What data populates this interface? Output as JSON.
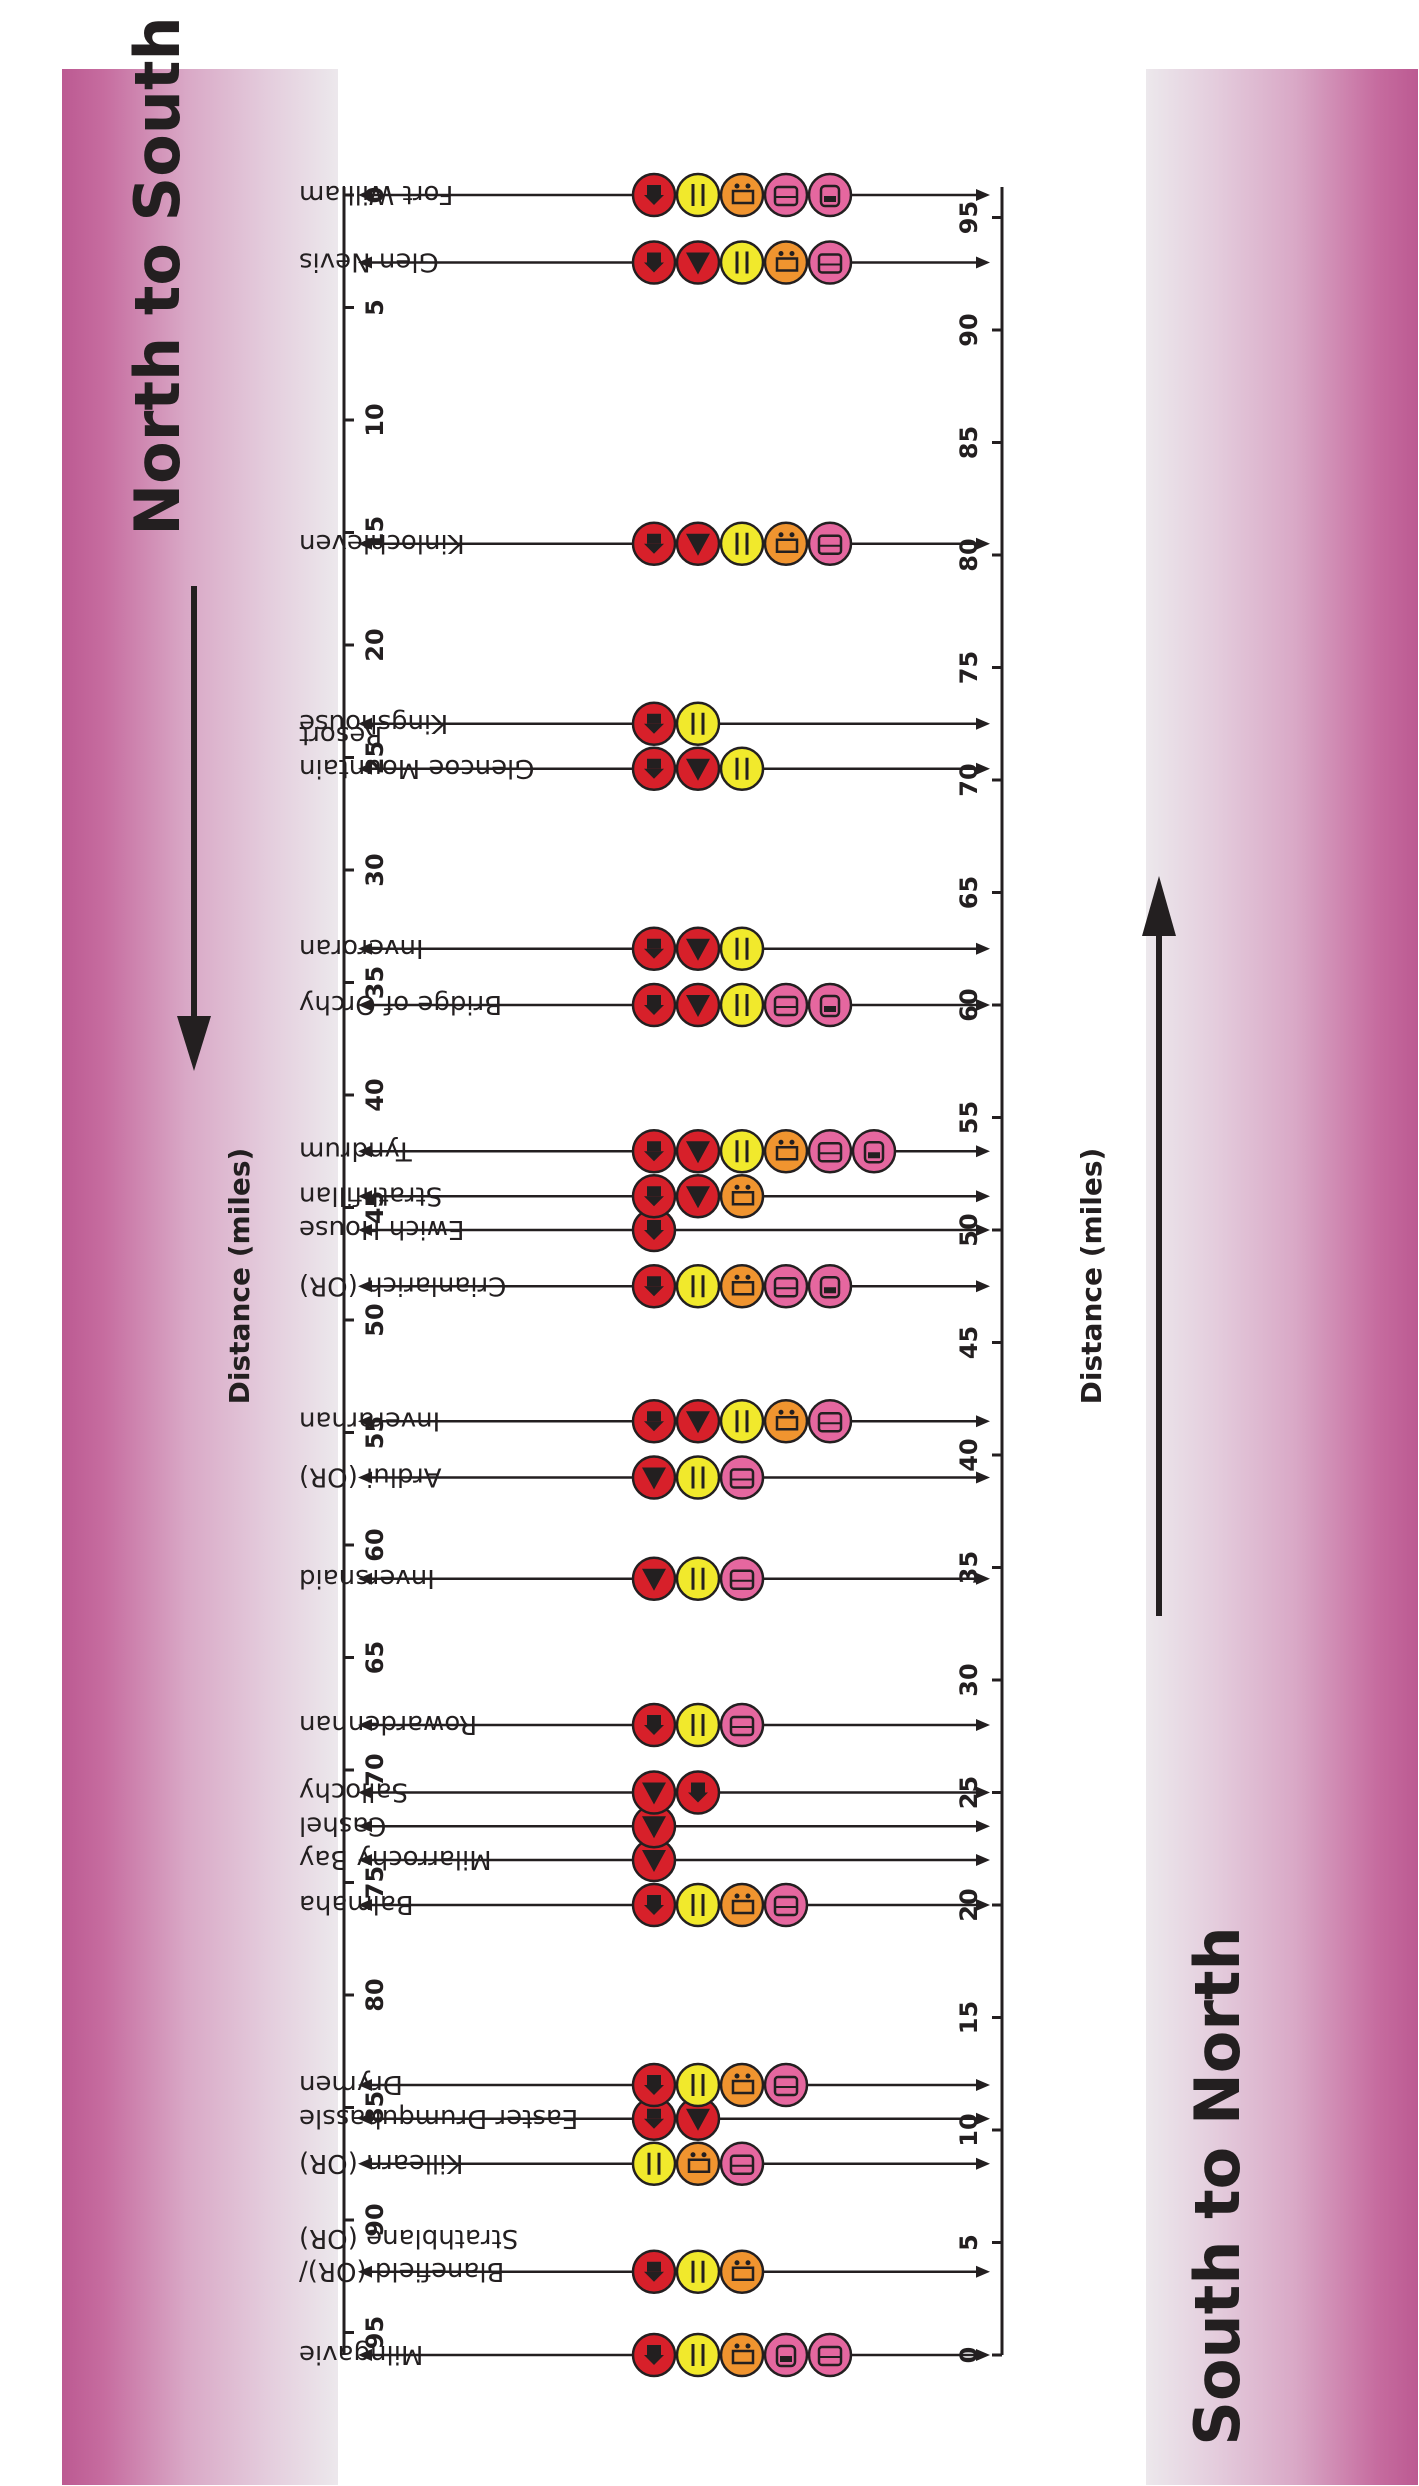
{
  "headings": {
    "north_to_south": "North to South",
    "south_to_north": "South to North"
  },
  "axis_title": "Distance (miles)",
  "colors": {
    "accent": "#bc5a92",
    "accommodation": "#d7202a",
    "camping": "#d7202a",
    "food": "#f1e92c",
    "shop": "#f0942f",
    "transport": "#e5679f"
  },
  "icons": {
    "accommodation": "house-icon",
    "camping": "tent-icon",
    "food": "cutlery-icon",
    "shop": "trolley-icon",
    "train": "train-icon",
    "bus": "bus-icon"
  },
  "chart_data": {
    "type": "scatter",
    "x_axis_ns": {
      "label": "Distance (miles)",
      "range": [
        0,
        96
      ],
      "ticks": [
        0,
        5,
        10,
        15,
        20,
        25,
        30,
        35,
        40,
        45,
        50,
        55,
        60,
        65,
        70,
        75,
        80,
        85,
        90,
        95
      ]
    },
    "x_axis_sn": {
      "label": "Distance (miles)",
      "range": [
        0,
        96
      ],
      "ticks": [
        0,
        5,
        10,
        15,
        20,
        25,
        30,
        35,
        40,
        45,
        50,
        55,
        60,
        65,
        70,
        75,
        80,
        85,
        90,
        95
      ]
    },
    "stops": [
      {
        "name": "Milngavie",
        "ns": 96,
        "icons": [
          "accommodation",
          "food",
          "shop",
          "train",
          "bus"
        ]
      },
      {
        "name": "Blanefield (OR)/",
        "name2": "Strathblane (OR)",
        "ns": 92.3,
        "icons": [
          "accommodation",
          "food",
          "shop"
        ]
      },
      {
        "name": "Killearn (OR)",
        "ns": 87.5,
        "icons": [
          "food",
          "shop",
          "bus"
        ]
      },
      {
        "name": "Easter Drumquhassle",
        "ns": 85.5,
        "icons": [
          "accommodation",
          "camping"
        ]
      },
      {
        "name": "Drymen",
        "ns": 84,
        "icons": [
          "accommodation",
          "food",
          "shop",
          "bus"
        ]
      },
      {
        "name": "Balmaha",
        "ns": 76,
        "icons": [
          "accommodation",
          "food",
          "shop",
          "bus"
        ]
      },
      {
        "name": "Milarrochy Bay",
        "ns": 74,
        "icons": [
          "camping"
        ]
      },
      {
        "name": "Cashel",
        "ns": 72.5,
        "icons": [
          "camping"
        ]
      },
      {
        "name": "Sallochy",
        "ns": 71,
        "icons": [
          "camping",
          "accommodation"
        ]
      },
      {
        "name": "Rowardennan",
        "ns": 68,
        "icons": [
          "accommodation",
          "food",
          "bus"
        ]
      },
      {
        "name": "Inversnaid",
        "ns": 61.5,
        "icons": [
          "camping",
          "food",
          "bus"
        ]
      },
      {
        "name": "Ardlui (OR)",
        "ns": 57,
        "icons": [
          "camping",
          "food",
          "bus"
        ]
      },
      {
        "name": "Inverarnan",
        "ns": 54.5,
        "icons": [
          "accommodation",
          "camping",
          "food",
          "shop",
          "bus"
        ]
      },
      {
        "name": "Crianlarich (OR)",
        "ns": 48.5,
        "icons": [
          "accommodation",
          "food",
          "shop",
          "bus",
          "train"
        ]
      },
      {
        "name": "Ewich House",
        "ns": 46,
        "icons": [
          "accommodation"
        ]
      },
      {
        "name": "Strathfillan",
        "ns": 44.5,
        "icons": [
          "accommodation",
          "camping",
          "shop"
        ]
      },
      {
        "name": "Tyndrum",
        "ns": 42.5,
        "icons": [
          "accommodation",
          "camping",
          "food",
          "shop",
          "bus",
          "train"
        ]
      },
      {
        "name": "Bridge of Orchy",
        "ns": 36,
        "icons": [
          "accommodation",
          "camping",
          "food",
          "bus",
          "train"
        ]
      },
      {
        "name": "Inveroran",
        "ns": 33.5,
        "icons": [
          "accommodation",
          "camping",
          "food"
        ]
      },
      {
        "name": "Glencoe Mountain",
        "name2": "Resort",
        "ns": 25.5,
        "icons": [
          "accommodation",
          "camping",
          "food"
        ]
      },
      {
        "name": "Kingshouse",
        "ns": 23.5,
        "icons": [
          "accommodation",
          "food"
        ]
      },
      {
        "name": "Kinlochleven",
        "ns": 15.5,
        "icons": [
          "accommodation",
          "camping",
          "food",
          "shop",
          "bus"
        ]
      },
      {
        "name": "Glen Nevis",
        "ns": 3,
        "icons": [
          "accommodation",
          "camping",
          "food",
          "shop",
          "bus"
        ]
      },
      {
        "name": "Fort William",
        "ns": 0,
        "icons": [
          "accommodation",
          "food",
          "shop",
          "bus",
          "train"
        ]
      }
    ]
  }
}
